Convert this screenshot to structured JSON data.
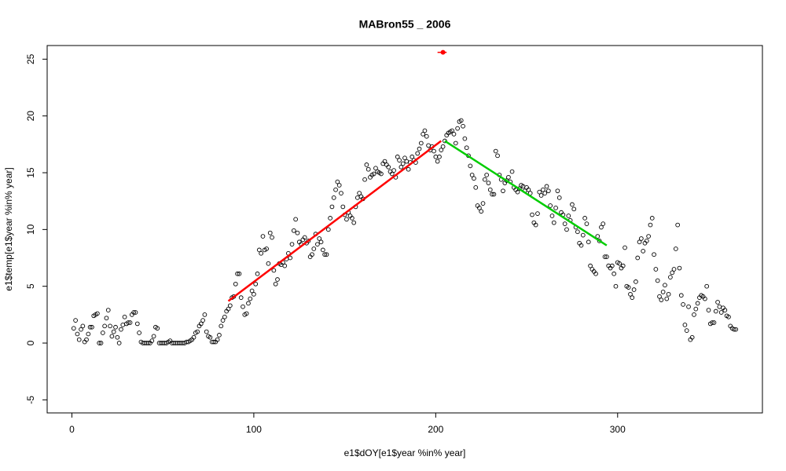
{
  "chart_data": {
    "type": "scatter",
    "title": "MABron55 _ 2006",
    "xlabel": "e1$dOY[e1$year %in% year]",
    "ylabel": "e1$temp[e1$year %in% year]",
    "xlim": [
      -13.6,
      379.6
    ],
    "ylim": [
      -6.15,
      26.2
    ],
    "xticks": [
      0,
      100,
      200,
      300
    ],
    "yticks": [
      -5,
      0,
      5,
      10,
      15,
      20,
      25
    ],
    "color": "#000000",
    "x": [
      1,
      2,
      3,
      4,
      5,
      6,
      7,
      8,
      9,
      10,
      11,
      12,
      13,
      14,
      15,
      16,
      17,
      18,
      19,
      20,
      21,
      22,
      23,
      24,
      25,
      26,
      27,
      28,
      29,
      30,
      31,
      32,
      33,
      34,
      35,
      36,
      37,
      38,
      39,
      40,
      41,
      42,
      43,
      44,
      45,
      46,
      47,
      48,
      49,
      50,
      51,
      52,
      53,
      54,
      55,
      56,
      57,
      58,
      59,
      60,
      61,
      62,
      63,
      64,
      65,
      66,
      67,
      68,
      69,
      70,
      71,
      72,
      73,
      74,
      75,
      76,
      77,
      78,
      79,
      80,
      81,
      82,
      83,
      84,
      85,
      86,
      87,
      88,
      89,
      90,
      91,
      92,
      93,
      94,
      95,
      96,
      97,
      98,
      99,
      100,
      101,
      102,
      103,
      104,
      105,
      106,
      107,
      108,
      109,
      110,
      111,
      112,
      113,
      114,
      115,
      116,
      117,
      118,
      119,
      120,
      121,
      122,
      123,
      124,
      125,
      126,
      127,
      128,
      129,
      130,
      131,
      132,
      133,
      134,
      135,
      136,
      137,
      138,
      139,
      140,
      141,
      142,
      143,
      144,
      145,
      146,
      147,
      148,
      149,
      150,
      151,
      152,
      153,
      154,
      155,
      156,
      157,
      158,
      159,
      160,
      161,
      162,
      163,
      164,
      165,
      166,
      167,
      168,
      169,
      170,
      171,
      172,
      173,
      174,
      175,
      176,
      177,
      178,
      179,
      180,
      181,
      182,
      183,
      184,
      185,
      186,
      187,
      188,
      189,
      190,
      191,
      192,
      193,
      194,
      195,
      196,
      197,
      198,
      199,
      200,
      201,
      202,
      203,
      204,
      205,
      206,
      207,
      208,
      209,
      210,
      211,
      212,
      213,
      214,
      215,
      216,
      217,
      218,
      219,
      220,
      221,
      222,
      223,
      224,
      225,
      226,
      227,
      228,
      229,
      230,
      231,
      232,
      233,
      234,
      235,
      236,
      237,
      238,
      239,
      240,
      241,
      242,
      243,
      244,
      245,
      246,
      247,
      248,
      249,
      250,
      251,
      252,
      253,
      254,
      255,
      256,
      257,
      258,
      259,
      260,
      261,
      262,
      263,
      264,
      265,
      266,
      267,
      268,
      269,
      270,
      271,
      272,
      273,
      274,
      275,
      276,
      277,
      278,
      279,
      280,
      281,
      282,
      283,
      284,
      285,
      286,
      287,
      288,
      289,
      290,
      291,
      292,
      293,
      294,
      295,
      296,
      297,
      298,
      299,
      300,
      301,
      302,
      303,
      304,
      305,
      306,
      307,
      308,
      309,
      310,
      311,
      312,
      313,
      314,
      315,
      316,
      317,
      318,
      319,
      320,
      321,
      322,
      323,
      324,
      325,
      326,
      327,
      328,
      329,
      330,
      331,
      332,
      333,
      334,
      335,
      336,
      337,
      338,
      339,
      340,
      341,
      342,
      343,
      344,
      345,
      346,
      347,
      348,
      349,
      350,
      351,
      352,
      353,
      354,
      355,
      356,
      357,
      358,
      359,
      360,
      361,
      362,
      363,
      364,
      365
    ],
    "values": [
      1.3,
      2.0,
      0.8,
      0.3,
      1.2,
      1.5,
      0.1,
      0.3,
      0.8,
      1.4,
      1.4,
      2.4,
      2.5,
      2.6,
      0.0,
      0.0,
      0.9,
      1.5,
      2.2,
      2.9,
      1.5,
      0.6,
      1.0,
      1.4,
      0.5,
      0.0,
      1.2,
      1.6,
      2.3,
      1.7,
      1.8,
      1.8,
      2.5,
      2.7,
      2.7,
      1.7,
      0.9,
      0.1,
      0.0,
      0.0,
      0.0,
      0.0,
      0.0,
      0.2,
      0.6,
      1.4,
      1.3,
      0.0,
      0.0,
      0.0,
      0.0,
      0.0,
      0.1,
      0.2,
      0.0,
      0.0,
      0.0,
      0.0,
      0.0,
      0.0,
      0.0,
      0.0,
      0.1,
      0.1,
      0.2,
      0.3,
      0.5,
      0.9,
      1.0,
      1.5,
      1.7,
      2.0,
      2.5,
      1.0,
      0.6,
      0.5,
      0.1,
      0.1,
      0.1,
      0.3,
      0.7,
      1.5,
      2.0,
      2.3,
      2.8,
      3.0,
      3.3,
      4.0,
      4.1,
      5.2,
      6.1,
      6.1,
      4.0,
      3.2,
      2.5,
      2.6,
      3.5,
      3.9,
      4.6,
      4.3,
      5.2,
      6.1,
      8.2,
      7.9,
      9.4,
      8.2,
      8.3,
      7.0,
      9.7,
      9.3,
      6.4,
      5.2,
      5.6,
      7.0,
      6.9,
      7.1,
      6.8,
      7.4,
      7.9,
      7.5,
      8.7,
      9.9,
      10.9,
      9.7,
      8.9,
      8.7,
      9.1,
      9.3,
      8.8,
      9.0,
      7.6,
      7.8,
      8.3,
      9.6,
      8.7,
      9.2,
      8.9,
      8.2,
      7.8,
      7.8,
      10.0,
      11.0,
      12.0,
      12.8,
      13.5,
      14.2,
      13.9,
      13.2,
      12.0,
      11.3,
      10.9,
      11.5,
      11.2,
      11.0,
      10.6,
      12.0,
      12.8,
      13.2,
      12.9,
      12.7,
      14.4,
      15.7,
      15.3,
      14.6,
      14.8,
      14.9,
      15.4,
      15.1,
      15.0,
      14.9,
      15.8,
      16.0,
      15.7,
      15.5,
      15.1,
      14.9,
      15.2,
      14.6,
      16.4,
      16.1,
      15.5,
      15.8,
      16.3,
      16.0,
      15.3,
      15.9,
      16.4,
      16.1,
      15.9,
      16.7,
      17.1,
      17.6,
      18.4,
      18.7,
      18.2,
      17.4,
      17.0,
      17.3,
      16.9,
      16.4,
      16.0,
      16.4,
      17.0,
      17.3,
      17.8,
      18.3,
      18.5,
      18.6,
      18.7,
      18.4,
      17.6,
      18.9,
      19.5,
      19.6,
      19.1,
      18.0,
      17.2,
      16.5,
      15.6,
      14.8,
      14.5,
      13.7,
      12.1,
      11.9,
      11.6,
      12.3,
      14.4,
      14.8,
      14.1,
      13.5,
      13.1,
      13.1,
      16.9,
      16.5,
      14.8,
      14.4,
      13.4,
      14.1,
      14.3,
      14.6,
      14.2,
      15.1,
      13.7,
      13.5,
      13.3,
      13.6,
      13.9,
      13.8,
      13.4,
      13.7,
      13.5,
      13.2,
      11.3,
      10.6,
      10.4,
      11.4,
      13.3,
      13.0,
      13.5,
      13.2,
      13.8,
      13.4,
      12.1,
      11.2,
      10.6,
      11.9,
      13.4,
      12.8,
      11.5,
      11.3,
      10.5,
      10.0,
      11.2,
      10.8,
      12.2,
      11.8,
      10.2,
      9.8,
      8.8,
      8.6,
      9.5,
      11.0,
      10.5,
      8.9,
      6.8,
      6.5,
      6.3,
      6.1,
      9.4,
      9.0,
      10.2,
      10.5,
      7.6,
      7.6,
      6.8,
      6.6,
      6.8,
      6.1,
      5.0,
      7.1,
      7.0,
      6.6,
      6.8,
      8.4,
      5.0,
      4.9,
      4.3,
      4.0,
      4.7,
      5.4,
      7.5,
      8.9,
      9.2,
      8.1,
      8.8,
      9.0,
      9.4,
      10.4,
      11.0,
      7.8,
      6.5,
      5.5,
      4.1,
      3.8,
      4.5,
      5.1,
      3.9,
      4.3,
      5.8,
      6.2,
      6.5,
      8.3,
      10.4,
      6.6,
      4.2,
      3.4,
      1.6,
      1.1,
      3.2,
      0.3,
      0.5,
      2.5,
      3.0,
      3.5,
      4.0,
      4.2,
      4.1,
      3.9,
      5.0,
      2.9,
      1.7,
      1.8,
      1.8,
      2.8,
      3.6,
      3.2,
      2.7,
      3.1,
      2.9,
      2.4,
      2.3,
      1.5,
      1.3,
      1.2,
      1.2
    ],
    "lines": [
      {
        "color": "#ff0000",
        "x": [
          86,
          203
        ],
        "values": [
          3.7,
          17.8
        ]
      },
      {
        "color": "#00cd00",
        "x": [
          205,
          294
        ],
        "values": [
          17.8,
          8.6
        ]
      }
    ],
    "marker": {
      "color": "#ff0000",
      "x": 204,
      "value": 25.6,
      "range": [
        201,
        206
      ]
    }
  }
}
